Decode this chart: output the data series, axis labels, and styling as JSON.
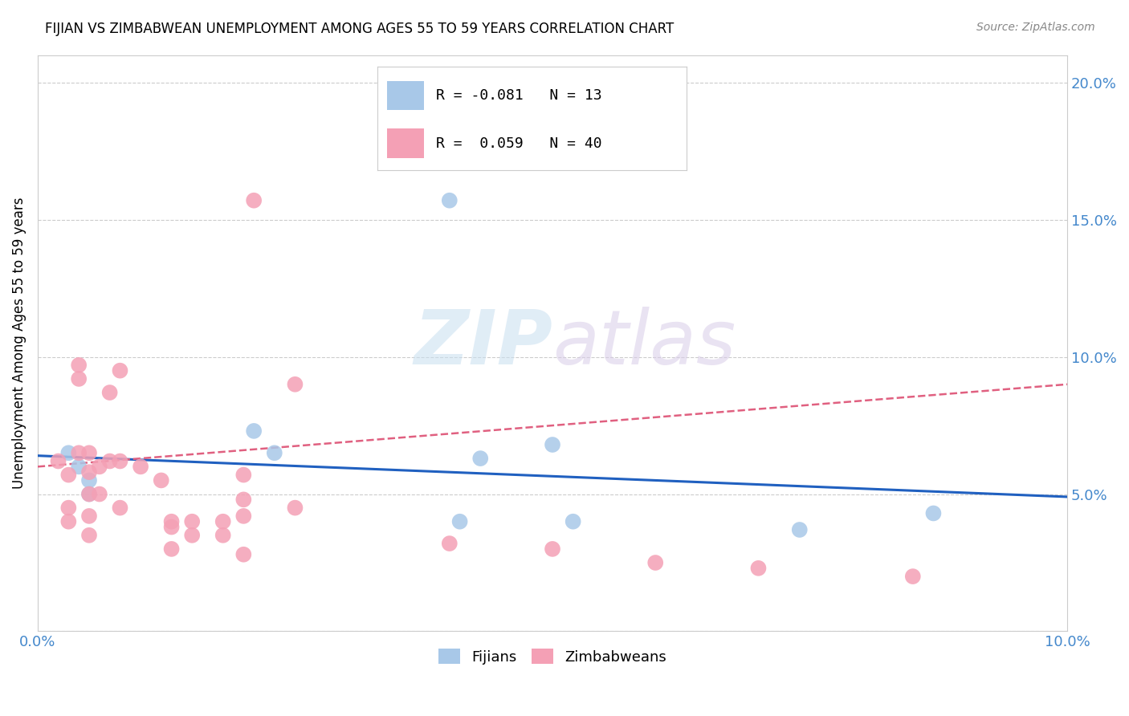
{
  "title": "FIJIAN VS ZIMBABWEAN UNEMPLOYMENT AMONG AGES 55 TO 59 YEARS CORRELATION CHART",
  "source": "Source: ZipAtlas.com",
  "ylabel": "Unemployment Among Ages 55 to 59 years",
  "xlim": [
    0.0,
    0.1
  ],
  "ylim": [
    0.0,
    0.21
  ],
  "fijian_color": "#a8c8e8",
  "zimbabwean_color": "#f4a0b5",
  "fijian_line_color": "#2060c0",
  "zimbabwean_line_color": "#e06080",
  "legend_R_fijian": "-0.081",
  "legend_N_fijian": "13",
  "legend_R_zimbabwean": "0.059",
  "legend_N_zimbabwean": "40",
  "tick_color": "#4488cc",
  "fijian_x": [
    0.003,
    0.004,
    0.005,
    0.005,
    0.021,
    0.023,
    0.041,
    0.043,
    0.05,
    0.052,
    0.04,
    0.074,
    0.087
  ],
  "fijian_y": [
    0.065,
    0.06,
    0.055,
    0.05,
    0.073,
    0.065,
    0.04,
    0.063,
    0.068,
    0.04,
    0.157,
    0.037,
    0.043
  ],
  "zimbabwean_x": [
    0.002,
    0.003,
    0.003,
    0.003,
    0.004,
    0.004,
    0.004,
    0.005,
    0.005,
    0.005,
    0.005,
    0.005,
    0.006,
    0.006,
    0.007,
    0.007,
    0.008,
    0.008,
    0.008,
    0.01,
    0.012,
    0.013,
    0.013,
    0.013,
    0.015,
    0.015,
    0.018,
    0.018,
    0.02,
    0.02,
    0.02,
    0.02,
    0.021,
    0.025,
    0.025,
    0.04,
    0.05,
    0.06,
    0.07,
    0.085
  ],
  "zimbabwean_y": [
    0.062,
    0.057,
    0.045,
    0.04,
    0.097,
    0.092,
    0.065,
    0.065,
    0.058,
    0.05,
    0.042,
    0.035,
    0.06,
    0.05,
    0.087,
    0.062,
    0.095,
    0.062,
    0.045,
    0.06,
    0.055,
    0.04,
    0.038,
    0.03,
    0.04,
    0.035,
    0.04,
    0.035,
    0.057,
    0.048,
    0.042,
    0.028,
    0.157,
    0.09,
    0.045,
    0.032,
    0.03,
    0.025,
    0.023,
    0.02
  ],
  "fijian_line_x": [
    0.0,
    0.1
  ],
  "fijian_line_y_start": 0.064,
  "fijian_line_y_end": 0.049,
  "zimbab_line_y_start": 0.06,
  "zimbab_line_y_end": 0.09
}
